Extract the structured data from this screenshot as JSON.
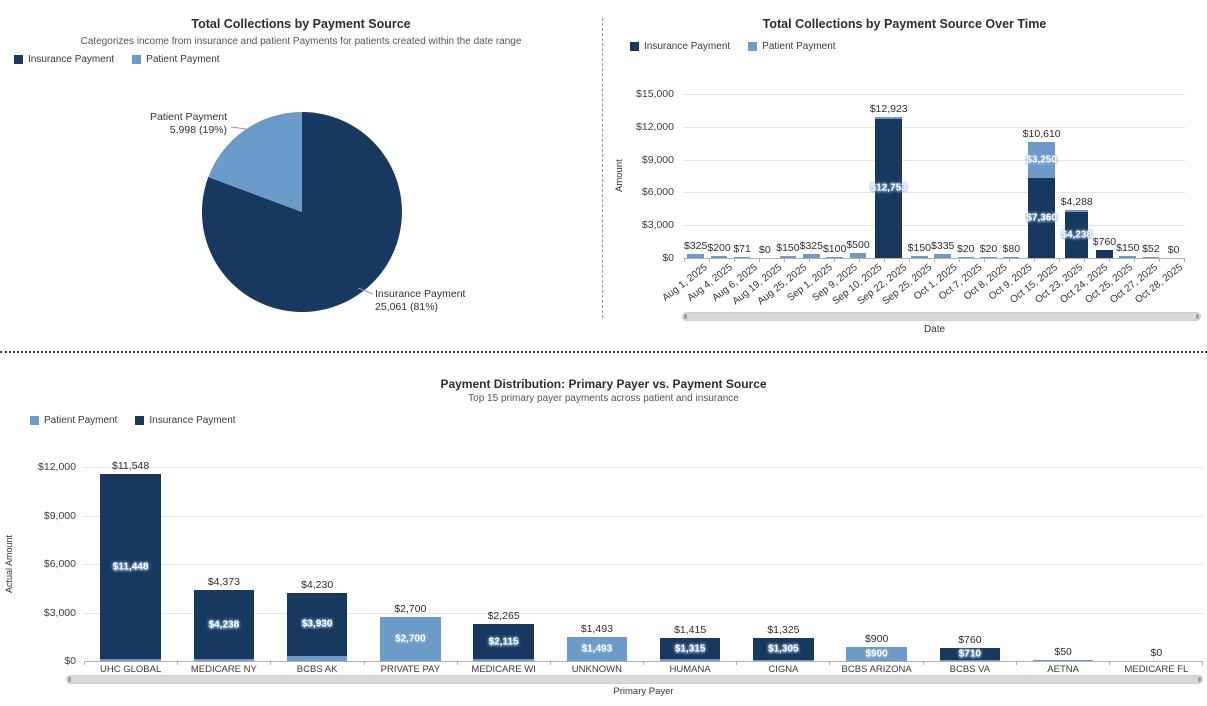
{
  "colors": {
    "insurance": "#17395f",
    "patient": "#6b9bc9",
    "gridline": "#e7e7e7",
    "axis": "#b0b0b0"
  },
  "chart_data": [
    {
      "id": "collections-by-source",
      "type": "pie",
      "title": "Total Collections by Payment Source",
      "subtitle": "Categorizes income from insurance and patient Payments for patients created within the date range",
      "legend": [
        "Insurance Payment",
        "Patient Payment"
      ],
      "slices": [
        {
          "series": "insurance",
          "name": "Insurance Payment",
          "value": 25061,
          "pct": 81,
          "label_line1": "Insurance Payment",
          "label_line2": "25,061 (81%)"
        },
        {
          "series": "patient",
          "name": "Patient Payment",
          "value": 5998,
          "pct": 19,
          "label_line1": "Patient Payment",
          "label_line2": "5,998 (19%)"
        }
      ]
    },
    {
      "id": "collections-over-time",
      "type": "stacked-bar",
      "title": "Total Collections by Payment Source Over Time",
      "legend": [
        "Insurance Payment",
        "Patient Payment"
      ],
      "xlabel": "Date",
      "ylabel": "Amount",
      "ymax": 15000,
      "yticks": [
        "$15,000",
        "$12,000",
        "$9,000",
        "$6,000",
        "$3,000",
        "$0"
      ],
      "bars": [
        {
          "date": "Aug 1, 2025",
          "insurance": 0,
          "patient": 325,
          "label": "$325"
        },
        {
          "date": "Aug 4, 2025",
          "insurance": 0,
          "patient": 200,
          "label": "$200"
        },
        {
          "date": "Aug 6, 2025",
          "insurance": 0,
          "patient": 71,
          "label": "$71"
        },
        {
          "date": "Aug 19, 2025",
          "insurance": 0,
          "patient": 0,
          "label": "$0"
        },
        {
          "date": "Aug 25, 2025",
          "insurance": 0,
          "patient": 150,
          "label": "$150"
        },
        {
          "date": "Sep 1, 2025",
          "insurance": 0,
          "patient": 325,
          "label": "$325"
        },
        {
          "date": "Sep 9, 2025",
          "insurance": 0,
          "patient": 100,
          "label": "$100"
        },
        {
          "date": "Sep 10, 2025",
          "insurance": 0,
          "patient": 500,
          "label": "$500"
        },
        {
          "date": "Sep 22, 2025",
          "insurance": 12753,
          "patient": 170,
          "label": "$12,923",
          "insurance_label": "$12,753"
        },
        {
          "date": "Sep 25, 2025",
          "insurance": 0,
          "patient": 150,
          "label": "$150"
        },
        {
          "date": "Oct 1, 2025",
          "insurance": 0,
          "patient": 335,
          "label": "$335"
        },
        {
          "date": "Oct 7, 2025",
          "insurance": 0,
          "patient": 20,
          "label": "$20"
        },
        {
          "date": "Oct 8, 2025",
          "insurance": 0,
          "patient": 20,
          "label": "$20"
        },
        {
          "date": "Oct 9, 2025",
          "insurance": 0,
          "patient": 80,
          "label": "$80"
        },
        {
          "date": "Oct 15, 2025",
          "insurance": 7360,
          "patient": 3250,
          "label": "$10,610",
          "insurance_label": "$7,360",
          "patient_label": "$3,250"
        },
        {
          "date": "Oct 23, 2025",
          "insurance": 4238,
          "patient": 50,
          "label": "$4,288",
          "insurance_label": "$4,238"
        },
        {
          "date": "Oct 24, 2025",
          "insurance": 760,
          "patient": 0,
          "label": "$760"
        },
        {
          "date": "Oct 25, 2025",
          "insurance": 0,
          "patient": 150,
          "label": "$150"
        },
        {
          "date": "Oct 27, 2025",
          "insurance": 0,
          "patient": 52,
          "label": "$52"
        },
        {
          "date": "Oct 28, 2025",
          "insurance": 0,
          "patient": 0,
          "label": "$0"
        }
      ]
    },
    {
      "id": "payment-distribution-by-payer",
      "type": "stacked-bar",
      "title": "Payment Distribution: Primary Payer vs. Payment Source",
      "subtitle": "Top 15 primary payer payments across patient and insurance",
      "legend": [
        "Patient Payment",
        "Insurance Payment"
      ],
      "xlabel": "Primary Payer",
      "ylabel": "Actual Amount",
      "ymax": 12000,
      "yticks": [
        "$12,000",
        "$9,000",
        "$6,000",
        "$3,000",
        "$0"
      ],
      "bars": [
        {
          "payer": "UHC GLOBAL",
          "patient": 100,
          "insurance": 11448,
          "label": "$11,548",
          "insurance_label": "$11,448"
        },
        {
          "payer": "MEDICARE NY",
          "patient": 135,
          "insurance": 4238,
          "label": "$4,373",
          "insurance_label": "$4,238"
        },
        {
          "payer": "BCBS AK",
          "patient": 300,
          "insurance": 3930,
          "label": "$4,230",
          "insurance_label": "$3,930"
        },
        {
          "payer": "PRIVATE PAY",
          "patient": 2700,
          "insurance": 0,
          "label": "$2,700",
          "patient_label": "$2,700"
        },
        {
          "payer": "MEDICARE WI",
          "patient": 150,
          "insurance": 2115,
          "label": "$2,265",
          "insurance_label": "$2,115"
        },
        {
          "payer": "UNKNOWN",
          "patient": 1493,
          "insurance": 0,
          "label": "$1,493",
          "patient_label": "$1,493"
        },
        {
          "payer": "HUMANA",
          "patient": 100,
          "insurance": 1315,
          "label": "$1,415",
          "insurance_label": "$1,315"
        },
        {
          "payer": "CIGNA",
          "patient": 20,
          "insurance": 1305,
          "label": "$1,325",
          "insurance_label": "$1,305"
        },
        {
          "payer": "BCBS ARIZONA",
          "patient": 900,
          "insurance": 0,
          "label": "$900",
          "patient_label": "$900"
        },
        {
          "payer": "BCBS VA",
          "patient": 50,
          "insurance": 710,
          "label": "$760",
          "insurance_label": "$710"
        },
        {
          "payer": "AETNA",
          "patient": 50,
          "insurance": 0,
          "label": "$50"
        },
        {
          "payer": "MEDICARE FL",
          "patient": 0,
          "insurance": 0,
          "label": "$0"
        }
      ]
    }
  ]
}
